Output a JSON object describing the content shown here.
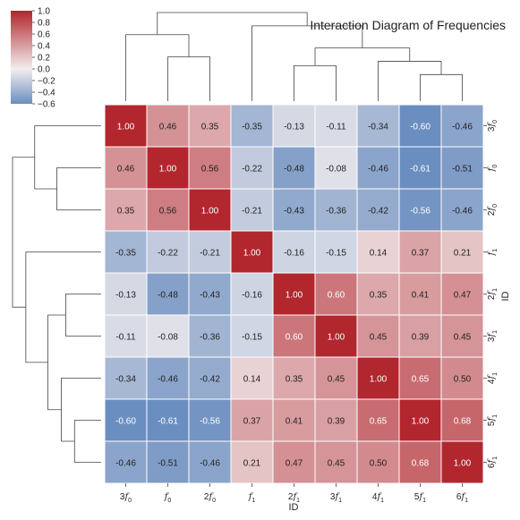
{
  "chart_data": {
    "type": "heatmap",
    "title": "Interaction Diagram of Frequencies",
    "xlabel": "ID",
    "ylabel": "ID",
    "labels": [
      {
        "base": "f",
        "sub": "0",
        "prefix": "3"
      },
      {
        "base": "f",
        "sub": "0",
        "prefix": ""
      },
      {
        "base": "f",
        "sub": "0",
        "prefix": "2"
      },
      {
        "base": "f",
        "sub": "1",
        "prefix": ""
      },
      {
        "base": "f",
        "sub": "1",
        "prefix": "2"
      },
      {
        "base": "f",
        "sub": "1",
        "prefix": "3"
      },
      {
        "base": "f",
        "sub": "1",
        "prefix": "4"
      },
      {
        "base": "f",
        "sub": "1",
        "prefix": "5"
      },
      {
        "base": "f",
        "sub": "1",
        "prefix": "6"
      }
    ],
    "values": [
      [
        1.0,
        0.46,
        0.35,
        -0.35,
        -0.13,
        -0.11,
        -0.34,
        -0.6,
        -0.46
      ],
      [
        0.46,
        1.0,
        0.56,
        -0.22,
        -0.48,
        -0.08,
        -0.46,
        -0.61,
        -0.51
      ],
      [
        0.35,
        0.56,
        1.0,
        -0.21,
        -0.43,
        -0.36,
        -0.42,
        -0.56,
        -0.46
      ],
      [
        -0.35,
        -0.22,
        -0.21,
        1.0,
        -0.16,
        -0.15,
        0.14,
        0.37,
        0.21
      ],
      [
        -0.13,
        -0.48,
        -0.43,
        -0.16,
        1.0,
        0.6,
        0.35,
        0.41,
        0.47
      ],
      [
        -0.11,
        -0.08,
        -0.36,
        -0.15,
        0.6,
        1.0,
        0.45,
        0.39,
        0.45
      ],
      [
        -0.34,
        -0.46,
        -0.42,
        0.14,
        0.35,
        0.45,
        1.0,
        0.65,
        0.5
      ],
      [
        -0.6,
        -0.61,
        -0.56,
        0.37,
        0.41,
        0.39,
        0.65,
        1.0,
        0.68
      ],
      [
        -0.46,
        -0.51,
        -0.46,
        0.21,
        0.47,
        0.45,
        0.5,
        0.68,
        1.0
      ]
    ],
    "colorbar": {
      "vmin": -0.6,
      "vmax": 1.0,
      "center": 0.0,
      "ticks": [
        "1.0",
        "0.8",
        "0.6",
        "0.4",
        "0.2",
        "0.0",
        "−0.2",
        "−0.4",
        "−0.6"
      ],
      "tick_values": [
        1.0,
        0.8,
        0.6,
        0.4,
        0.2,
        0.0,
        -0.2,
        -0.4,
        -0.6
      ]
    },
    "colormap": {
      "negative": "#6b8ec0",
      "center": "#f2eeee",
      "positive": "#b2262e"
    },
    "dendrogram": {
      "row_order": [
        0,
        1,
        2,
        3,
        4,
        5,
        6,
        7,
        8
      ],
      "merges": [
        [
          1,
          2,
          0.5
        ],
        [
          0,
          9,
          0.75
        ],
        [
          4,
          5,
          0.4
        ],
        [
          7,
          8,
          0.3
        ],
        [
          6,
          12,
          0.45
        ],
        [
          11,
          13,
          0.6
        ],
        [
          3,
          14,
          0.85
        ],
        [
          10,
          15,
          1.0
        ]
      ]
    }
  }
}
